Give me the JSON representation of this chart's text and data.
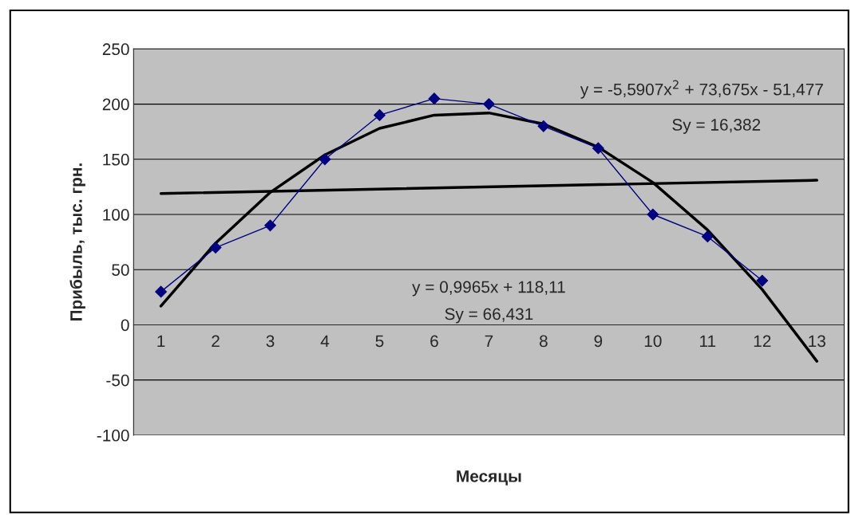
{
  "chart_data": {
    "type": "line",
    "xlabel": "Месяцы",
    "ylabel": "Прибыль, тыс. грн.",
    "x": [
      1,
      2,
      3,
      4,
      5,
      6,
      7,
      8,
      9,
      10,
      11,
      12
    ],
    "series": [
      {
        "color": "#000080",
        "marker": "diamond",
        "values": [
          30,
          70,
          90,
          150,
          190,
          205,
          200,
          180,
          160,
          100,
          80,
          40
        ]
      },
      {
        "type": "line",
        "color": "#000000",
        "marker": "none",
        "x": [
          1,
          13
        ],
        "values": [
          119,
          131
        ]
      },
      {
        "type": "line",
        "color": "#000000",
        "marker": "none",
        "x": [
          1,
          2,
          3,
          4,
          5,
          6,
          7,
          8,
          9,
          10,
          11,
          12,
          13
        ],
        "values": [
          17,
          74,
          120,
          154,
          178,
          190,
          192,
          182,
          161,
          129,
          86,
          32,
          -33
        ]
      }
    ],
    "annotations": [
      "y = -5,5907x$^{2}$ + 73,675x - 51,477",
      "Sy = 16,382",
      "y = 0,9965x + 118,11",
      "Sy = 66,431"
    ],
    "xlim": [
      0.5,
      13.5
    ],
    "xticks": [
      1,
      2,
      3,
      4,
      5,
      6,
      7,
      8,
      9,
      10,
      11,
      12,
      13
    ],
    "ylim": [
      -100,
      250
    ],
    "yticks": [
      -100,
      -50,
      0,
      50,
      100,
      150,
      200,
      250
    ],
    "grid": "y",
    "legend": false
  }
}
